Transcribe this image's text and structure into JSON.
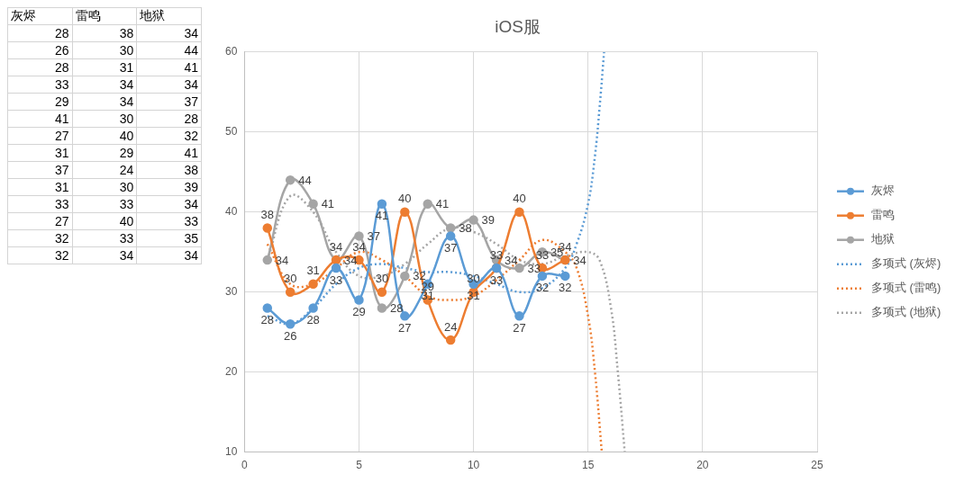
{
  "chart_data": [
    {
      "type": "other",
      "categories": [
        "灰烬",
        "雷鸣",
        "地狱"
      ],
      "annotations": [
        "28",
        "38",
        "34",
        "26",
        "30",
        "44",
        "28",
        "31",
        "41",
        "33",
        "34",
        "34",
        "29",
        "34",
        "37",
        "41",
        "30",
        "28",
        "27",
        "40",
        "32",
        "31",
        "29",
        "41",
        "37",
        "24",
        "38",
        "31",
        "30",
        "39",
        "33",
        "33",
        "34",
        "27",
        "40",
        "33",
        "32",
        "33",
        "35",
        "32",
        "34",
        "34"
      ]
    },
    {
      "type": "line",
      "title": "iOS服",
      "xlim": [
        0,
        25
      ],
      "xticks": [
        0,
        5,
        10,
        15,
        20,
        25
      ],
      "ylim": [
        10,
        60
      ],
      "yticks": [
        10,
        20,
        30,
        40,
        50,
        60
      ],
      "grid": true,
      "legend": "right",
      "marker": "circle",
      "series": [
        {
          "name": "灰烬",
          "color": "#5b9bd5",
          "x": [
            1,
            2,
            3,
            4,
            5,
            6,
            7,
            8,
            9,
            10,
            11,
            12,
            13,
            14
          ],
          "values": [
            28,
            26,
            28,
            33,
            29,
            41,
            27,
            31,
            37,
            31,
            33,
            27,
            32,
            32
          ],
          "value_labels": [
            "28",
            "26",
            "28",
            "33",
            "29",
            "41",
            "27",
            "31",
            "37",
            "31",
            "33",
            "27",
            "32",
            "32"
          ]
        },
        {
          "name": "雷鸣",
          "color": "#ed7d31",
          "x": [
            1,
            2,
            3,
            4,
            5,
            6,
            7,
            8,
            9,
            10,
            11,
            12,
            13,
            14
          ],
          "values": [
            38,
            30,
            31,
            34,
            34,
            30,
            40,
            29,
            24,
            30,
            33,
            40,
            33,
            34
          ],
          "value_labels": [
            "38",
            "30",
            "31",
            "34",
            "34",
            "30",
            "40",
            "29",
            "24",
            "30",
            "33",
            "40",
            "33",
            "34"
          ]
        },
        {
          "name": "地狱",
          "color": "#a5a5a5",
          "x": [
            1,
            2,
            3,
            4,
            5,
            6,
            7,
            8,
            9,
            10,
            11,
            12,
            13,
            14
          ],
          "values": [
            34,
            44,
            41,
            34,
            37,
            28,
            32,
            41,
            38,
            39,
            34,
            33,
            35,
            34
          ],
          "value_labels": [
            "34",
            "44",
            "41",
            "34",
            "37",
            "28",
            "32",
            "41",
            "38",
            "39",
            "34",
            "33",
            "35",
            "34"
          ]
        },
        {
          "name": "多项式 (灰烬)",
          "color": "#5b9bd5",
          "marker": "none",
          "line_style": "dotted",
          "x": [
            1,
            2,
            3,
            4,
            5,
            6,
            7,
            8,
            9,
            10,
            11,
            12,
            13,
            14,
            14.5,
            15,
            15.3,
            15.5,
            15.7
          ],
          "values": [
            27,
            26,
            28,
            31,
            33,
            33.5,
            33,
            32.5,
            32.5,
            32,
            31,
            30,
            30.5,
            33,
            36,
            41,
            47,
            53,
            60
          ]
        },
        {
          "name": "多项式 (雷鸣)",
          "color": "#ed7d31",
          "marker": "none",
          "line_style": "dotted",
          "x": [
            1,
            2,
            3,
            4,
            5,
            6,
            7,
            8,
            9,
            10,
            11,
            12,
            13,
            14,
            14.5,
            15,
            15.3,
            15.6
          ],
          "values": [
            36,
            31,
            31,
            33,
            35,
            34,
            32,
            29.5,
            29,
            29.5,
            31.5,
            34,
            36.5,
            35,
            33,
            27,
            20,
            10
          ]
        },
        {
          "name": "多项式 (地狱)",
          "color": "#a5a5a5",
          "marker": "none",
          "line_style": "dotted",
          "x": [
            1,
            2,
            3,
            4,
            5,
            6,
            7,
            8,
            9,
            10,
            11,
            12,
            13,
            14,
            15,
            15.5,
            16,
            16.3,
            16.6
          ],
          "values": [
            34,
            42,
            40,
            35,
            32,
            32,
            33.5,
            36,
            38,
            37.5,
            36,
            34,
            33.5,
            34.5,
            35,
            34,
            28,
            20,
            10
          ]
        }
      ]
    }
  ]
}
